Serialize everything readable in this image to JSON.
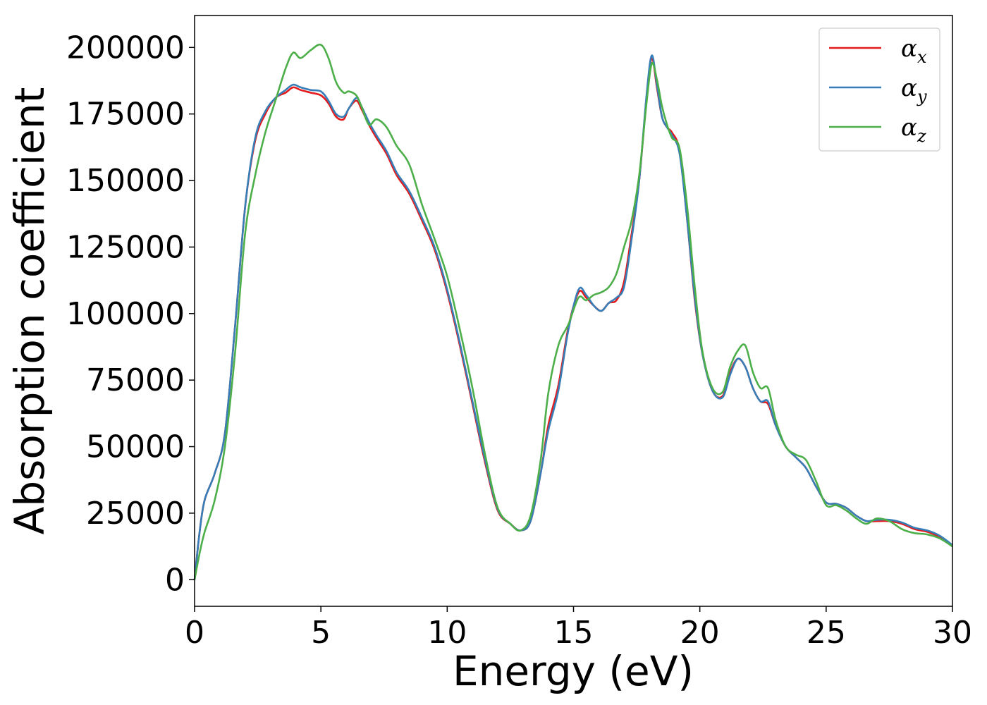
{
  "chart_data": {
    "type": "line",
    "xlabel": "Energy (eV)",
    "ylabel": "Absorption coefficient",
    "xlim": [
      0,
      30
    ],
    "ylim": [
      -10000,
      212000
    ],
    "xticks": [
      0,
      5,
      10,
      15,
      20,
      25,
      30
    ],
    "yticks": [
      0,
      25000,
      50000,
      75000,
      100000,
      125000,
      150000,
      175000,
      200000
    ],
    "grid": false,
    "legend_position": "top-right",
    "series": [
      {
        "name": "α",
        "subscript": "x",
        "color": "#e41a1c",
        "x": [
          0,
          0.2,
          0.4,
          0.8,
          1.2,
          1.6,
          2.0,
          2.4,
          2.8,
          3.2,
          3.6,
          3.9,
          4.2,
          4.6,
          5.0,
          5.3,
          5.6,
          5.9,
          6.1,
          6.4,
          6.6,
          6.9,
          7.2,
          7.6,
          8.0,
          8.5,
          9.0,
          9.5,
          10.0,
          10.5,
          11.0,
          11.5,
          12.0,
          12.5,
          12.9,
          13.3,
          13.7,
          14.0,
          14.4,
          14.8,
          15.2,
          15.5,
          15.8,
          16.1,
          16.4,
          16.7,
          17.0,
          17.3,
          17.6,
          17.9,
          18.1,
          18.3,
          18.5,
          18.7,
          18.9,
          19.2,
          19.5,
          19.8,
          20.1,
          20.5,
          20.9,
          21.2,
          21.5,
          21.8,
          22.1,
          22.4,
          22.7,
          23.0,
          23.4,
          23.8,
          24.2,
          24.6,
          25.0,
          25.4,
          25.8,
          26.2,
          26.6,
          27.0,
          27.5,
          28.0,
          28.5,
          29.0,
          29.5,
          30.0
        ],
        "y": [
          0,
          18000,
          30000,
          40000,
          55000,
          95000,
          140000,
          165000,
          175000,
          181000,
          183000,
          185000,
          184000,
          183000,
          182000,
          179000,
          174000,
          173000,
          177000,
          180000,
          177000,
          171000,
          166000,
          160000,
          152000,
          145000,
          135000,
          124000,
          108000,
          88000,
          66000,
          44000,
          26000,
          21000,
          18500,
          22000,
          40000,
          58000,
          73000,
          95000,
          108000,
          106000,
          103000,
          101000,
          104000,
          105000,
          112000,
          130000,
          150000,
          182000,
          196000,
          185000,
          174000,
          170000,
          168000,
          161000,
          135000,
          105000,
          85000,
          71000,
          69000,
          78000,
          83000,
          80000,
          72000,
          67000,
          66000,
          58000,
          50000,
          46000,
          42000,
          35000,
          29000,
          28500,
          27000,
          24000,
          22000,
          22000,
          22000,
          21000,
          19000,
          18000,
          16000,
          13000
        ]
      },
      {
        "name": "α",
        "subscript": "y",
        "color": "#377eb8",
        "x": [
          0,
          0.2,
          0.4,
          0.8,
          1.2,
          1.6,
          2.0,
          2.4,
          2.8,
          3.2,
          3.6,
          3.9,
          4.2,
          4.6,
          5.0,
          5.3,
          5.6,
          5.9,
          6.1,
          6.4,
          6.6,
          6.9,
          7.2,
          7.6,
          8.0,
          8.5,
          9.0,
          9.5,
          10.0,
          10.5,
          11.0,
          11.5,
          12.0,
          12.5,
          12.9,
          13.3,
          13.7,
          14.0,
          14.4,
          14.8,
          15.2,
          15.5,
          15.8,
          16.1,
          16.4,
          16.7,
          17.0,
          17.3,
          17.6,
          17.9,
          18.1,
          18.3,
          18.5,
          18.7,
          18.9,
          19.2,
          19.5,
          19.8,
          20.1,
          20.5,
          20.9,
          21.2,
          21.5,
          21.8,
          22.1,
          22.4,
          22.7,
          23.0,
          23.4,
          23.8,
          24.2,
          24.6,
          25.0,
          25.4,
          25.8,
          26.2,
          26.6,
          27.0,
          27.5,
          28.0,
          28.5,
          29.0,
          29.5,
          30.0
        ],
        "y": [
          0,
          18000,
          30000,
          40000,
          55000,
          95000,
          140000,
          166000,
          176000,
          181000,
          184000,
          186000,
          185000,
          184000,
          183500,
          180000,
          175000,
          174000,
          177000,
          181000,
          178000,
          172000,
          167000,
          161000,
          153000,
          146000,
          136000,
          125000,
          109000,
          89000,
          67000,
          45000,
          26500,
          21000,
          18500,
          22000,
          40000,
          56000,
          71000,
          94000,
          109000,
          107000,
          103000,
          101000,
          104000,
          106000,
          110000,
          128000,
          150000,
          183000,
          197000,
          186000,
          174000,
          170000,
          167000,
          160000,
          135000,
          106000,
          85000,
          71000,
          68500,
          77000,
          83000,
          80000,
          72000,
          67000,
          67000,
          58000,
          50000,
          46000,
          42000,
          35000,
          29000,
          28500,
          27000,
          24000,
          22000,
          22500,
          22500,
          21500,
          19500,
          18500,
          16500,
          13000
        ]
      },
      {
        "name": "α",
        "subscript": "z",
        "color": "#4daf4a",
        "x": [
          0,
          0.2,
          0.4,
          0.8,
          1.2,
          1.6,
          2.0,
          2.4,
          2.8,
          3.2,
          3.6,
          3.9,
          4.2,
          4.6,
          5.0,
          5.3,
          5.6,
          5.9,
          6.1,
          6.4,
          6.6,
          6.9,
          7.2,
          7.6,
          8.0,
          8.5,
          9.0,
          9.5,
          10.0,
          10.5,
          11.0,
          11.5,
          12.0,
          12.5,
          12.9,
          13.3,
          13.7,
          14.0,
          14.4,
          14.8,
          15.2,
          15.5,
          15.8,
          16.1,
          16.4,
          16.7,
          17.0,
          17.3,
          17.6,
          17.9,
          18.1,
          18.3,
          18.5,
          18.7,
          18.9,
          19.2,
          19.5,
          19.8,
          20.1,
          20.5,
          20.9,
          21.2,
          21.5,
          21.8,
          22.1,
          22.4,
          22.7,
          23.0,
          23.4,
          23.8,
          24.2,
          24.6,
          25.0,
          25.4,
          25.8,
          26.2,
          26.6,
          27.0,
          27.5,
          28.0,
          28.5,
          29.0,
          29.5,
          30.0
        ],
        "y": [
          0,
          10000,
          18000,
          30000,
          50000,
          85000,
          130000,
          152000,
          168000,
          180000,
          192000,
          198000,
          196000,
          199000,
          201000,
          196000,
          187000,
          183000,
          183500,
          182000,
          178000,
          171000,
          173000,
          170000,
          163000,
          156000,
          141000,
          128000,
          114000,
          94000,
          72000,
          47000,
          27000,
          21000,
          18500,
          24000,
          45000,
          70000,
          88000,
          96000,
          106000,
          105000,
          107000,
          108000,
          110000,
          115000,
          125000,
          135000,
          152000,
          180000,
          194000,
          188000,
          178000,
          171000,
          166000,
          162000,
          140000,
          110000,
          86000,
          72000,
          70500,
          80000,
          86000,
          88000,
          78000,
          72000,
          72000,
          60000,
          50000,
          47000,
          45000,
          37000,
          28000,
          28000,
          26000,
          23000,
          21000,
          23000,
          22000,
          19000,
          17500,
          17000,
          15500,
          12500
        ]
      }
    ]
  }
}
